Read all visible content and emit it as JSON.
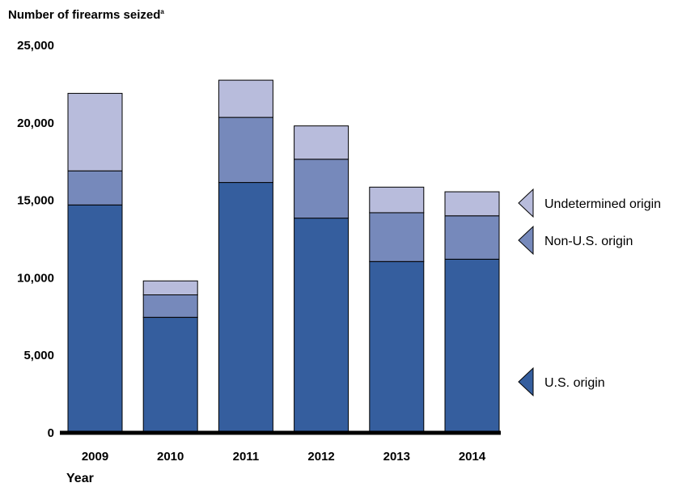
{
  "chart_data": {
    "type": "bar",
    "stacked": true,
    "ylabel": "Number of firearms seized",
    "ylabel_footnote": "a",
    "xlabel": "Year",
    "categories": [
      "2009",
      "2010",
      "2011",
      "2012",
      "2013",
      "2014"
    ],
    "series": [
      {
        "name": "U.S. origin",
        "color": "#355e9e",
        "values": [
          14700,
          7450,
          16150,
          13850,
          11050,
          11200
        ]
      },
      {
        "name": "Non-U.S. origin",
        "color": "#7689bb",
        "values": [
          2200,
          1450,
          4200,
          3800,
          3150,
          2800
        ]
      },
      {
        "name": "Undetermined origin",
        "color": "#b8bcdc",
        "values": [
          5000,
          900,
          2400,
          2150,
          1650,
          1550
        ]
      }
    ],
    "ylim": [
      0,
      25000
    ],
    "yticks": [
      0,
      5000,
      10000,
      15000,
      20000,
      25000
    ],
    "ytick_labels": [
      "0",
      "5,000",
      "10,000",
      "15,000",
      "20,000",
      "25,000"
    ],
    "grid": false,
    "legend_position": "right"
  }
}
